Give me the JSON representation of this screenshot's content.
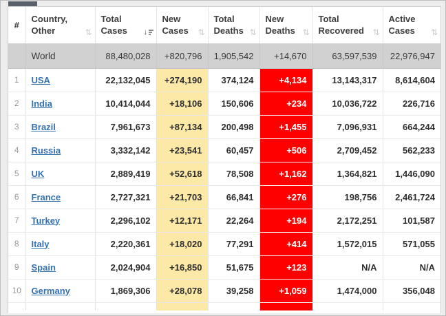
{
  "colors": {
    "accent_yellow": "#FCE9A7",
    "accent_red": "#FF0000",
    "world_row_gray": "#D1D1D1",
    "link_blue": "#3572B0",
    "frame_gray": "#EDEDED"
  },
  "table": {
    "columns": [
      {
        "key": "rank",
        "label": "#",
        "sortable": false,
        "sort": "none"
      },
      {
        "key": "country",
        "label": "Country,\nOther",
        "sortable": true,
        "sort": "none"
      },
      {
        "key": "total_cases",
        "label": "Total\nCases",
        "sortable": true,
        "sort": "desc"
      },
      {
        "key": "new_cases",
        "label": "New\nCases",
        "sortable": true,
        "sort": "none"
      },
      {
        "key": "total_deaths",
        "label": "Total\nDeaths",
        "sortable": true,
        "sort": "none"
      },
      {
        "key": "new_deaths",
        "label": "New\nDeaths",
        "sortable": true,
        "sort": "none"
      },
      {
        "key": "total_recovered",
        "label": "Total\nRecovered",
        "sortable": true,
        "sort": "none"
      },
      {
        "key": "active_cases",
        "label": "Active\nCases",
        "sortable": true,
        "sort": "none"
      }
    ],
    "world_row": {
      "rank": "",
      "country": "World",
      "total_cases": "88,480,028",
      "new_cases": "+820,796",
      "total_deaths": "1,905,542",
      "new_deaths": "+14,670",
      "total_recovered": "63,597,539",
      "active_cases": "22,976,947"
    },
    "rows": [
      {
        "rank": "1",
        "country": "USA",
        "total_cases": "22,132,045",
        "new_cases": "+274,190",
        "total_deaths": "374,124",
        "new_deaths": "+4,134",
        "total_recovered": "13,143,317",
        "active_cases": "8,614,604"
      },
      {
        "rank": "2",
        "country": "India",
        "total_cases": "10,414,044",
        "new_cases": "+18,106",
        "total_deaths": "150,606",
        "new_deaths": "+234",
        "total_recovered": "10,036,722",
        "active_cases": "226,716"
      },
      {
        "rank": "3",
        "country": "Brazil",
        "total_cases": "7,961,673",
        "new_cases": "+87,134",
        "total_deaths": "200,498",
        "new_deaths": "+1,455",
        "total_recovered": "7,096,931",
        "active_cases": "664,244"
      },
      {
        "rank": "4",
        "country": "Russia",
        "total_cases": "3,332,142",
        "new_cases": "+23,541",
        "total_deaths": "60,457",
        "new_deaths": "+506",
        "total_recovered": "2,709,452",
        "active_cases": "562,233"
      },
      {
        "rank": "5",
        "country": "UK",
        "total_cases": "2,889,419",
        "new_cases": "+52,618",
        "total_deaths": "78,508",
        "new_deaths": "+1,162",
        "total_recovered": "1,364,821",
        "active_cases": "1,446,090"
      },
      {
        "rank": "6",
        "country": "France",
        "total_cases": "2,727,321",
        "new_cases": "+21,703",
        "total_deaths": "66,841",
        "new_deaths": "+276",
        "total_recovered": "198,756",
        "active_cases": "2,461,724"
      },
      {
        "rank": "7",
        "country": "Turkey",
        "total_cases": "2,296,102",
        "new_cases": "+12,171",
        "total_deaths": "22,264",
        "new_deaths": "+194",
        "total_recovered": "2,172,251",
        "active_cases": "101,587"
      },
      {
        "rank": "8",
        "country": "Italy",
        "total_cases": "2,220,361",
        "new_cases": "+18,020",
        "total_deaths": "77,291",
        "new_deaths": "+414",
        "total_recovered": "1,572,015",
        "active_cases": "571,055"
      },
      {
        "rank": "9",
        "country": "Spain",
        "total_cases": "2,024,904",
        "new_cases": "+16,850",
        "total_deaths": "51,675",
        "new_deaths": "+123",
        "total_recovered": "N/A",
        "active_cases": "N/A"
      },
      {
        "rank": "10",
        "country": "Germany",
        "total_cases": "1,869,306",
        "new_cases": "+28,078",
        "total_deaths": "39,258",
        "new_deaths": "+1,059",
        "total_recovered": "1,474,000",
        "active_cases": "356,048"
      }
    ]
  }
}
